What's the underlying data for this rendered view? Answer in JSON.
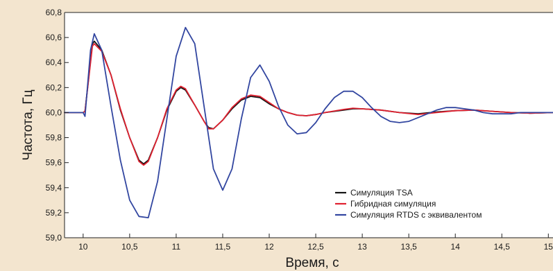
{
  "chart_data": {
    "type": "line",
    "title": "",
    "xlabel": "Время, с",
    "ylabel": "Частота, Гц",
    "xlim": [
      9.8,
      15.05
    ],
    "ylim": [
      59.0,
      60.8
    ],
    "x_ticks": [
      10,
      10.5,
      11,
      11.5,
      12,
      12.5,
      13,
      13.5,
      14,
      14.5,
      15
    ],
    "x_tick_labels": [
      "10",
      "10,5",
      "11",
      "11,5",
      "12",
      "12,5",
      "13",
      "13,5",
      "14",
      "14,5",
      "15"
    ],
    "y_ticks": [
      59.0,
      59.2,
      59.4,
      59.6,
      59.8,
      60.0,
      60.2,
      60.4,
      60.6,
      60.8
    ],
    "y_tick_labels": [
      "59,0",
      "59,2",
      "59,4",
      "59,6",
      "59,8",
      "60,0",
      "60,2",
      "60,4",
      "60,6",
      "60,8"
    ],
    "grid": false,
    "legend_position": "bottom-right",
    "series": [
      {
        "name": "Симуляция TSA",
        "color": "#141414",
        "x": [
          9.8,
          10.0,
          10.02,
          10.1,
          10.12,
          10.2,
          10.3,
          10.4,
          10.5,
          10.6,
          10.65,
          10.7,
          10.8,
          10.9,
          11.0,
          11.05,
          11.1,
          11.2,
          11.3,
          11.35,
          11.4,
          11.5,
          11.6,
          11.7,
          11.8,
          11.9,
          12.0,
          12.1,
          12.2,
          12.3,
          12.4,
          12.5,
          12.6,
          12.8,
          12.9,
          13.0,
          13.2,
          13.4,
          13.6,
          13.8,
          14.0,
          14.2,
          14.4,
          14.6,
          14.8,
          15.05
        ],
        "y": [
          60.0,
          60.0,
          60.01,
          60.55,
          60.57,
          60.5,
          60.3,
          60.02,
          59.8,
          59.62,
          59.59,
          59.62,
          59.8,
          60.02,
          60.17,
          60.2,
          60.18,
          60.06,
          59.93,
          59.88,
          59.87,
          59.94,
          60.03,
          60.1,
          60.13,
          60.12,
          60.07,
          60.03,
          60.0,
          59.98,
          59.975,
          59.985,
          60.0,
          60.02,
          60.03,
          60.03,
          60.02,
          60.0,
          59.99,
          60.005,
          60.015,
          60.02,
          60.01,
          60.0,
          59.995,
          60.0
        ]
      },
      {
        "name": "Гибридная симуляция",
        "color": "#e02130",
        "x": [
          9.8,
          10.0,
          10.02,
          10.1,
          10.12,
          10.2,
          10.3,
          10.4,
          10.5,
          10.6,
          10.65,
          10.7,
          10.8,
          10.9,
          11.0,
          11.05,
          11.1,
          11.2,
          11.3,
          11.35,
          11.4,
          11.5,
          11.6,
          11.7,
          11.8,
          11.9,
          12.0,
          12.1,
          12.2,
          12.3,
          12.4,
          12.5,
          12.6,
          12.8,
          12.9,
          13.0,
          13.2,
          13.4,
          13.6,
          13.8,
          14.0,
          14.2,
          14.4,
          14.6,
          14.8,
          15.05
        ],
        "y": [
          60.0,
          60.0,
          60.01,
          60.53,
          60.55,
          60.49,
          60.3,
          60.03,
          59.8,
          59.61,
          59.58,
          59.61,
          59.8,
          60.03,
          60.18,
          60.21,
          60.19,
          60.06,
          59.93,
          59.87,
          59.87,
          59.94,
          60.04,
          60.11,
          60.14,
          60.13,
          60.08,
          60.03,
          60.0,
          59.98,
          59.975,
          59.985,
          60.0,
          60.025,
          60.035,
          60.03,
          60.02,
          60.0,
          59.985,
          60.0,
          60.015,
          60.02,
          60.01,
          60.0,
          59.995,
          60.0
        ]
      },
      {
        "name": "Симуляция RTDS с эквивалентом",
        "color": "#3246a0",
        "x": [
          9.8,
          10.0,
          10.02,
          10.08,
          10.12,
          10.2,
          10.3,
          10.4,
          10.5,
          10.6,
          10.7,
          10.8,
          10.9,
          11.0,
          11.1,
          11.2,
          11.3,
          11.4,
          11.5,
          11.6,
          11.7,
          11.8,
          11.9,
          12.0,
          12.1,
          12.2,
          12.3,
          12.4,
          12.5,
          12.6,
          12.7,
          12.8,
          12.9,
          13.0,
          13.1,
          13.2,
          13.3,
          13.4,
          13.5,
          13.6,
          13.7,
          13.8,
          13.9,
          14.0,
          14.1,
          14.2,
          14.3,
          14.4,
          14.5,
          14.6,
          14.7,
          14.8,
          14.9,
          15.05
        ],
        "y": [
          60.0,
          60.0,
          59.97,
          60.5,
          60.63,
          60.5,
          60.05,
          59.62,
          59.3,
          59.17,
          59.16,
          59.45,
          59.95,
          60.45,
          60.68,
          60.55,
          60.05,
          59.55,
          59.38,
          59.55,
          59.95,
          60.28,
          60.38,
          60.25,
          60.05,
          59.9,
          59.83,
          59.84,
          59.92,
          60.03,
          60.12,
          60.17,
          60.17,
          60.12,
          60.04,
          59.97,
          59.93,
          59.92,
          59.93,
          59.96,
          59.99,
          60.02,
          60.04,
          60.04,
          60.03,
          60.02,
          60.0,
          59.99,
          59.99,
          59.99,
          60.0,
          60.0,
          60.0,
          60.0
        ]
      }
    ]
  }
}
